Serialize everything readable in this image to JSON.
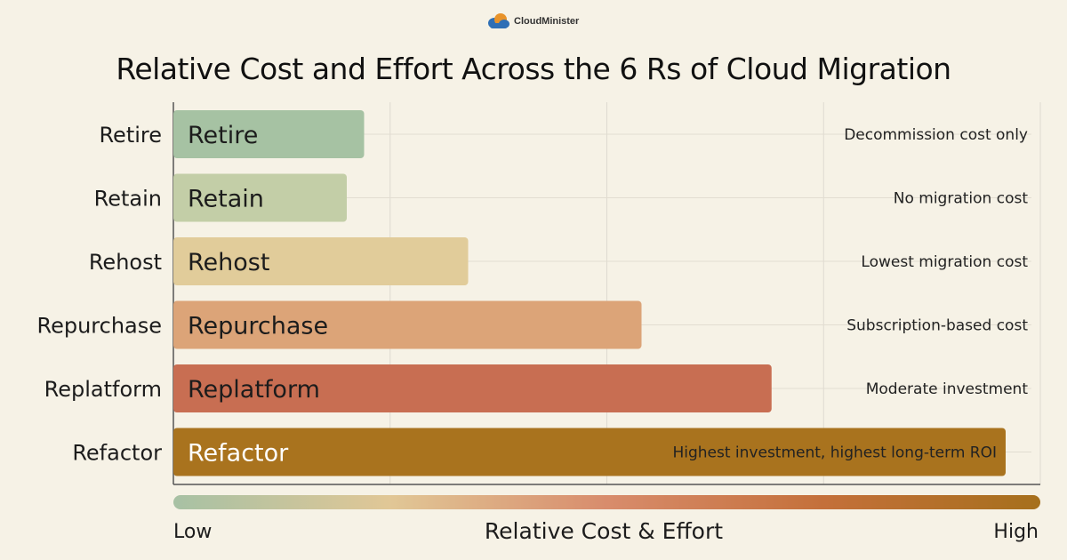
{
  "brand": {
    "name": "CloudMinister",
    "icon": "cloud-logo-icon"
  },
  "chart_data": {
    "type": "bar",
    "orientation": "horizontal",
    "title": "Relative Cost and Effort Across the 6 Rs of Cloud Migration",
    "xlabel": "Relative Cost & Effort",
    "scale_low_label": "Low",
    "scale_high_label": "High",
    "xlim": [
      0,
      100
    ],
    "grid": true,
    "categories": [
      "Retire",
      "Retain",
      "Rehost",
      "Repurchase",
      "Replatform",
      "Refactor"
    ],
    "values": [
      22,
      20,
      34,
      54,
      69,
      96
    ],
    "annotations": [
      "Decommission cost only",
      "No migration cost",
      "Lowest migration cost",
      "Subscription-based cost",
      "Moderate investment",
      "Highest investment, highest long-term ROI"
    ],
    "colors": [
      "#a6c2a3",
      "#c3cea7",
      "#e1cc9a",
      "#dca478",
      "#c86e52",
      "#a9731e"
    ],
    "gradient_colors": [
      "#a7c1a4",
      "#e1c796",
      "#d88c6c",
      "#c4703a",
      "#a6701c"
    ]
  }
}
